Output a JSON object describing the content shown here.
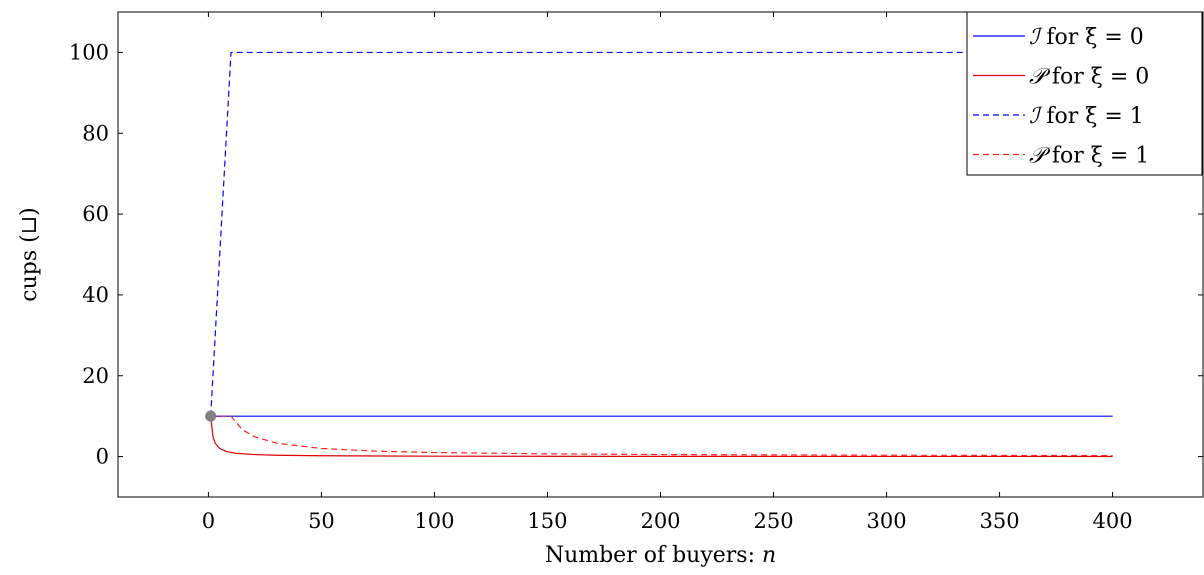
{
  "chart_data": {
    "type": "line",
    "xlabel": "Number of buyers: n",
    "xlabel_text": "Number of buyers: ",
    "xlabel_var": "n",
    "ylabel": "cups (⊔)",
    "xlim": [
      -40,
      440
    ],
    "ylim": [
      -10,
      110
    ],
    "xticks": [
      0,
      50,
      100,
      150,
      200,
      250,
      300,
      350,
      400
    ],
    "yticks": [
      0,
      20,
      40,
      60,
      80,
      100
    ],
    "grid": false,
    "legend_position": "top-right",
    "series": [
      {
        "name": "ℐ for ξ = 0",
        "symbol": "ℐ",
        "suffix": "for ξ = 0",
        "color": "#0000ff",
        "dash": "solid",
        "x": [
          1,
          400
        ],
        "y": [
          10,
          10
        ]
      },
      {
        "name": "𝒫 for ξ = 0",
        "symbol": "𝒫",
        "suffix": "for ξ = 0",
        "color": "#e00000",
        "dash": "solid",
        "x": [
          1,
          2,
          3,
          5,
          8,
          12,
          20,
          30,
          50,
          100,
          200,
          400
        ],
        "y": [
          10,
          5,
          3.3,
          2,
          1.25,
          0.83,
          0.5,
          0.33,
          0.2,
          0.1,
          0.05,
          0.025
        ]
      },
      {
        "name": "ℐ for ξ = 1",
        "symbol": "ℐ",
        "suffix": "for ξ = 1",
        "color": "#0000ff",
        "dash": "dashed",
        "x": [
          1,
          10,
          400
        ],
        "y": [
          10,
          100,
          100
        ]
      },
      {
        "name": "𝒫 for ξ = 1",
        "symbol": "𝒫",
        "suffix": "for ξ = 1",
        "color": "#ff2020",
        "dash": "dashed",
        "x": [
          1,
          10,
          15,
          20,
          30,
          50,
          75,
          100,
          150,
          200,
          300,
          400
        ],
        "y": [
          10,
          10,
          6.67,
          5,
          3.33,
          2,
          1.33,
          1,
          0.67,
          0.5,
          0.33,
          0.25
        ]
      }
    ],
    "points": [
      {
        "x": 1,
        "y": 10,
        "color": "#808080"
      }
    ]
  }
}
